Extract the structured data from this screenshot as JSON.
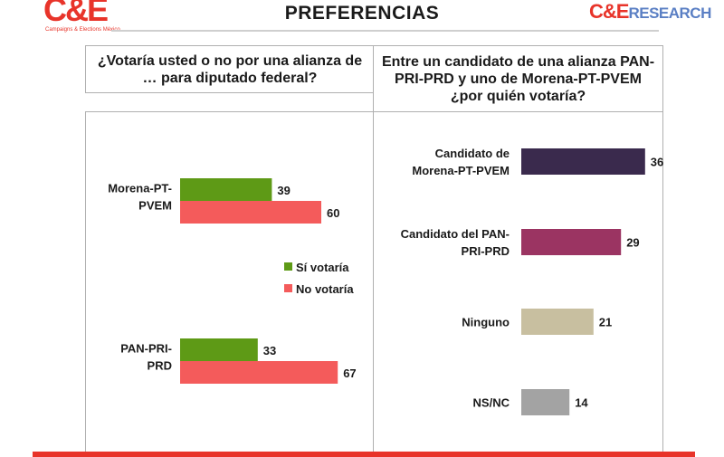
{
  "header": {
    "title": "PREFERENCIAS",
    "logo_left": "C&E",
    "logo_left_tagline": "Campaigns & Elections México",
    "logo_right_ce": "C&E",
    "logo_right_research": "RESEARCH"
  },
  "colors": {
    "accent_red": "#e8342a",
    "si_votaria": "#5e9a16",
    "no_votaria": "#f45b5b",
    "morena": "#3a2a4d",
    "pan": "#9b3462",
    "ninguno": "#c8bfa0",
    "nsnc": "#a3a3a3"
  },
  "chart_data": [
    {
      "type": "bar",
      "orientation": "horizontal",
      "title": "¿Votaría usted o no por una alianza de … para diputado federal?",
      "categories": [
        "Morena-PT-PVEM",
        "PAN-PRI-PRD"
      ],
      "series": [
        {
          "name": "Sí votaría",
          "values": [
            39,
            33
          ]
        },
        {
          "name": "No votaría",
          "values": [
            60,
            67
          ]
        }
      ],
      "xlim": [
        0,
        100
      ],
      "grid": false,
      "legend": "center-right"
    },
    {
      "type": "bar",
      "orientation": "horizontal",
      "title": "Entre un candidato de una alianza PAN-PRI-PRD y uno de Morena-PT-PVEM ¿por quién votaría?",
      "categories": [
        "Candidato de Morena-PT-PVEM",
        "Candidato del PAN-PRI-PRD",
        "Ninguno",
        "NS/NC"
      ],
      "values": [
        36,
        29,
        21,
        14
      ],
      "xlim": [
        0,
        100
      ],
      "grid": false
    }
  ],
  "left_chart": {
    "cat_lines": [
      [
        "Morena-PT-",
        "PVEM"
      ],
      [
        "PAN-PRI-",
        "PRD"
      ]
    ]
  },
  "right_chart": {
    "cat_lines": [
      [
        "Candidato de",
        "Morena-PT-PVEM"
      ],
      [
        "Candidato del PAN-",
        "PRI-PRD"
      ],
      [
        "Ninguno"
      ],
      [
        "NS/NC"
      ]
    ]
  }
}
